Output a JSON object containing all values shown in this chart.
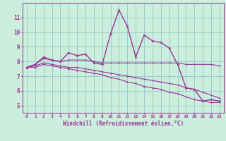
{
  "x": [
    0,
    1,
    2,
    3,
    4,
    5,
    6,
    7,
    8,
    9,
    10,
    11,
    12,
    13,
    14,
    15,
    16,
    17,
    18,
    19,
    20,
    21,
    22,
    23
  ],
  "y_main": [
    7.6,
    7.8,
    8.3,
    8.1,
    8.0,
    8.6,
    8.4,
    8.5,
    7.9,
    7.8,
    9.9,
    11.5,
    10.4,
    8.3,
    9.8,
    9.4,
    9.3,
    8.9,
    7.8,
    6.2,
    6.1,
    5.3,
    5.4,
    5.3
  ],
  "y_upper": [
    7.6,
    7.8,
    8.2,
    8.1,
    8.0,
    8.1,
    8.1,
    8.1,
    8.0,
    7.9,
    7.9,
    7.9,
    7.9,
    7.9,
    7.9,
    7.9,
    7.9,
    7.9,
    7.9,
    7.8,
    7.8,
    7.8,
    7.8,
    7.7
  ],
  "y_mid": [
    7.6,
    7.7,
    7.9,
    7.8,
    7.7,
    7.6,
    7.6,
    7.5,
    7.4,
    7.3,
    7.2,
    7.1,
    7.0,
    6.9,
    6.8,
    6.7,
    6.6,
    6.5,
    6.4,
    6.2,
    6.1,
    5.9,
    5.7,
    5.5
  ],
  "y_lower": [
    7.6,
    7.6,
    7.8,
    7.7,
    7.6,
    7.5,
    7.4,
    7.3,
    7.2,
    7.1,
    6.9,
    6.8,
    6.6,
    6.5,
    6.3,
    6.2,
    6.1,
    5.9,
    5.8,
    5.6,
    5.4,
    5.3,
    5.2,
    5.2
  ],
  "color": "#993399",
  "bg_color": "#cceedd",
  "grid_color": "#99cccc",
  "xlabel": "Windchill (Refroidissement éolien,°C)",
  "ylim": [
    4.5,
    12.0
  ],
  "xlim": [
    -0.5,
    23.5
  ],
  "yticks": [
    5,
    6,
    7,
    8,
    9,
    10,
    11
  ],
  "xticks": [
    0,
    1,
    2,
    3,
    4,
    5,
    6,
    7,
    8,
    9,
    10,
    11,
    12,
    13,
    14,
    15,
    16,
    17,
    18,
    19,
    20,
    21,
    22,
    23
  ]
}
